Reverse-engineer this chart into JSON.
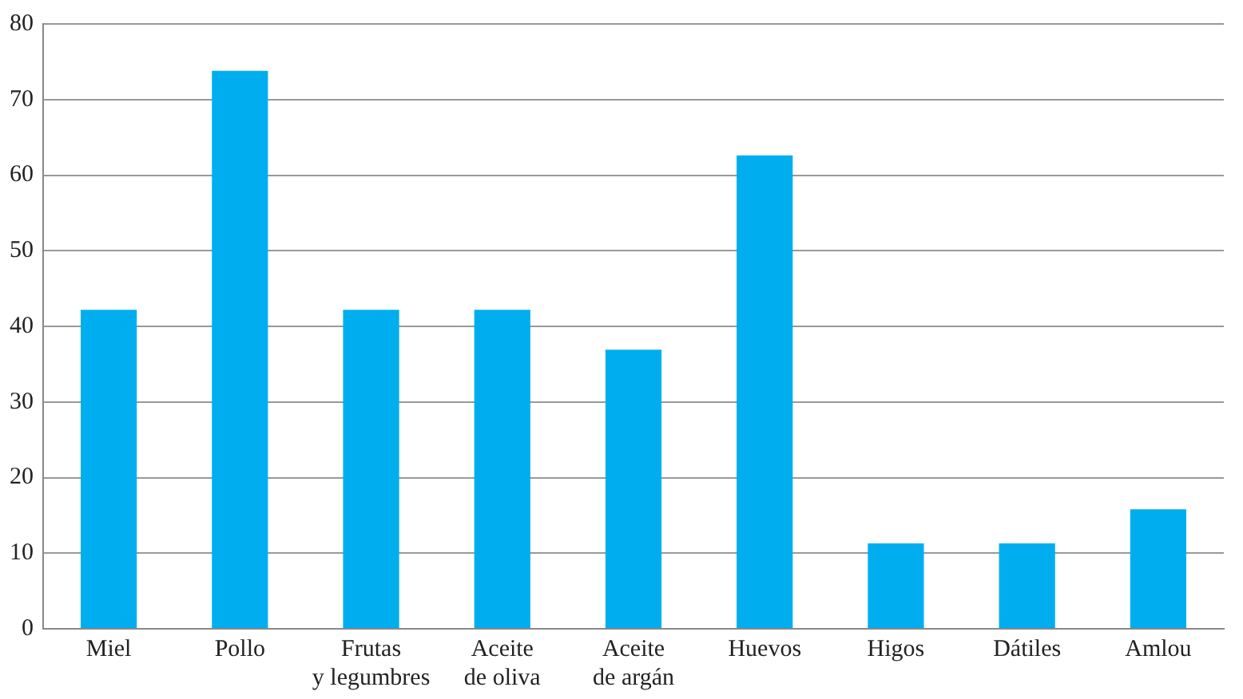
{
  "chart_data": {
    "type": "bar",
    "categories": [
      "Miel",
      "Pollo",
      "Frutas\ny legumbres",
      "Aceite\nde oliva",
      "Aceite\nde argán",
      "Huevos",
      "Higos",
      "Dátiles",
      "Amlou"
    ],
    "values": [
      42.2,
      73.8,
      42.2,
      42.2,
      36.9,
      62.6,
      11.3,
      11.3,
      15.8
    ],
    "color": "#00aeef",
    "ylim": [
      0,
      80
    ],
    "yticks": [
      0,
      10,
      20,
      30,
      40,
      50,
      60,
      70,
      80
    ],
    "grid": "y",
    "legend": false
  }
}
